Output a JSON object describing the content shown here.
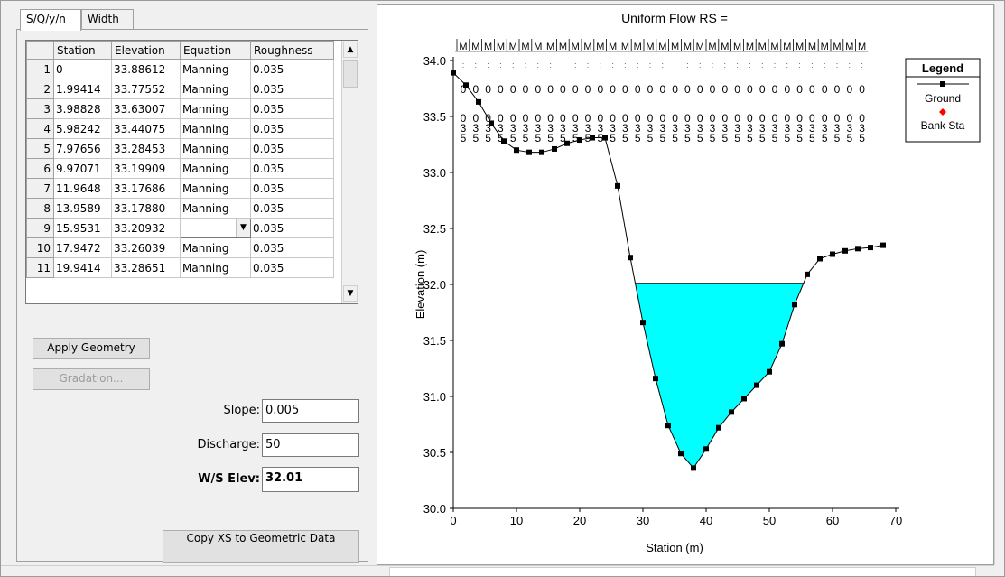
{
  "tabs": [
    {
      "label": "S/Q/y/n",
      "active": true
    },
    {
      "label": "Width",
      "active": false
    }
  ],
  "grid": {
    "columns": [
      "",
      "Station",
      "Elevation",
      "Equation",
      "Roughness"
    ],
    "rows": [
      [
        "1",
        "0",
        "33.88612",
        "Manning",
        "0.035"
      ],
      [
        "2",
        "1.99414",
        "33.77552",
        "Manning",
        "0.035"
      ],
      [
        "3",
        "3.98828",
        "33.63007",
        "Manning",
        "0.035"
      ],
      [
        "4",
        "5.98242",
        "33.44075",
        "Manning",
        "0.035"
      ],
      [
        "5",
        "7.97656",
        "33.28453",
        "Manning",
        "0.035"
      ],
      [
        "6",
        "9.97071",
        "33.19909",
        "Manning",
        "0.035"
      ],
      [
        "7",
        "11.9648",
        "33.17686",
        "Manning",
        "0.035"
      ],
      [
        "8",
        "13.9589",
        "33.17880",
        "Manning",
        "0.035"
      ],
      [
        "9",
        "15.9531",
        "33.20932",
        "",
        "0.035"
      ],
      [
        "10",
        "17.9472",
        "33.26039",
        "Manning",
        "0.035"
      ],
      [
        "11",
        "19.9414",
        "33.28651",
        "Manning",
        "0.035"
      ]
    ]
  },
  "buttons": {
    "apply_geometry": "Apply Geometry",
    "gradation": "Gradation...",
    "copy_xs": "Copy XS to Geometric Data"
  },
  "fields": {
    "slope_label": "Slope:",
    "slope_value": "0.005",
    "discharge_label": "Discharge:",
    "discharge_value": "50",
    "ws_label": "W/S Elev:",
    "ws_value": "32.01"
  },
  "chart_data": {
    "type": "line",
    "title": "Uniform Flow RS =",
    "xlabel": "Station (m)",
    "ylabel": "Elevation (m)",
    "xlim": [
      0,
      70
    ],
    "ylim": [
      30.0,
      34.0
    ],
    "xticks": [
      0,
      10,
      20,
      30,
      40,
      50,
      60,
      70
    ],
    "yticks": [
      "30.0",
      "30.5",
      "31.0",
      "31.5",
      "32.0",
      "32.5",
      "33.0",
      "33.5",
      "34.0"
    ],
    "legend": {
      "title": "Legend",
      "position": "top-right",
      "entries": [
        "Ground",
        "Bank Sta"
      ]
    },
    "colors": {
      "ground": "#000000",
      "water": "#00ffff",
      "bank": "#ff0000"
    },
    "ws_elev": 32.01,
    "ground": [
      [
        0,
        33.89
      ],
      [
        2,
        33.78
      ],
      [
        4,
        33.63
      ],
      [
        6,
        33.44
      ],
      [
        8,
        33.28
      ],
      [
        10,
        33.2
      ],
      [
        12,
        33.18
      ],
      [
        14,
        33.18
      ],
      [
        16,
        33.21
      ],
      [
        18,
        33.26
      ],
      [
        20,
        33.29
      ],
      [
        22,
        33.31
      ],
      [
        24,
        33.31
      ],
      [
        26,
        32.88
      ],
      [
        28,
        32.24
      ],
      [
        30,
        31.66
      ],
      [
        32,
        31.16
      ],
      [
        34,
        30.74
      ],
      [
        36,
        30.49
      ],
      [
        38,
        30.36
      ],
      [
        40,
        30.53
      ],
      [
        42,
        30.72
      ],
      [
        44,
        30.86
      ],
      [
        46,
        30.98
      ],
      [
        48,
        31.1
      ],
      [
        50,
        31.22
      ],
      [
        52,
        31.47
      ],
      [
        54,
        31.82
      ],
      [
        56,
        32.09
      ],
      [
        58,
        32.23
      ],
      [
        60,
        32.27
      ],
      [
        62,
        32.3
      ],
      [
        64,
        32.32
      ],
      [
        66,
        32.33
      ],
      [
        68,
        32.35
      ]
    ],
    "manning_label_rows": {
      "m_row": "M",
      "zero_row": "0",
      "n_row_digits": [
        "0",
        "3",
        "5"
      ]
    }
  }
}
